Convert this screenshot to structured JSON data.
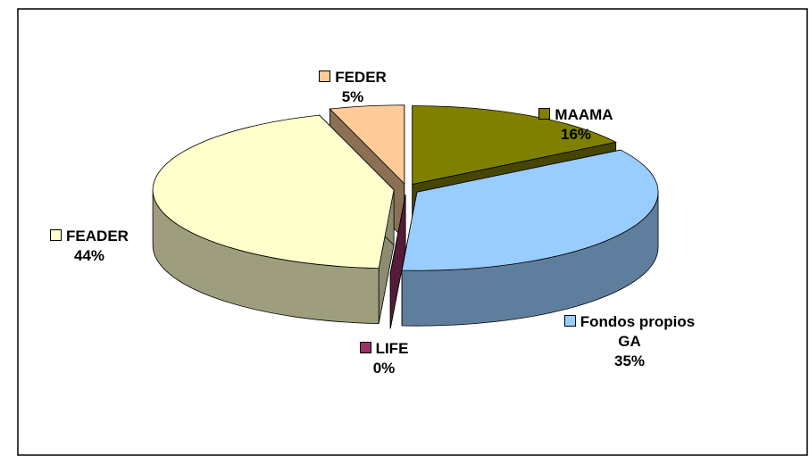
{
  "chart_data": {
    "type": "pie",
    "categories": [
      "FEDER",
      "MAAMA",
      "Fondos propios GA",
      "LIFE",
      "FEADER"
    ],
    "values": [
      5,
      16,
      35,
      0,
      44
    ],
    "value_labels": [
      "5%",
      "16%",
      "35%",
      "0%",
      "44%"
    ],
    "colors": [
      "#ffcc99",
      "#808000",
      "#99ccff",
      "#993366",
      "#ffffcc"
    ]
  }
}
